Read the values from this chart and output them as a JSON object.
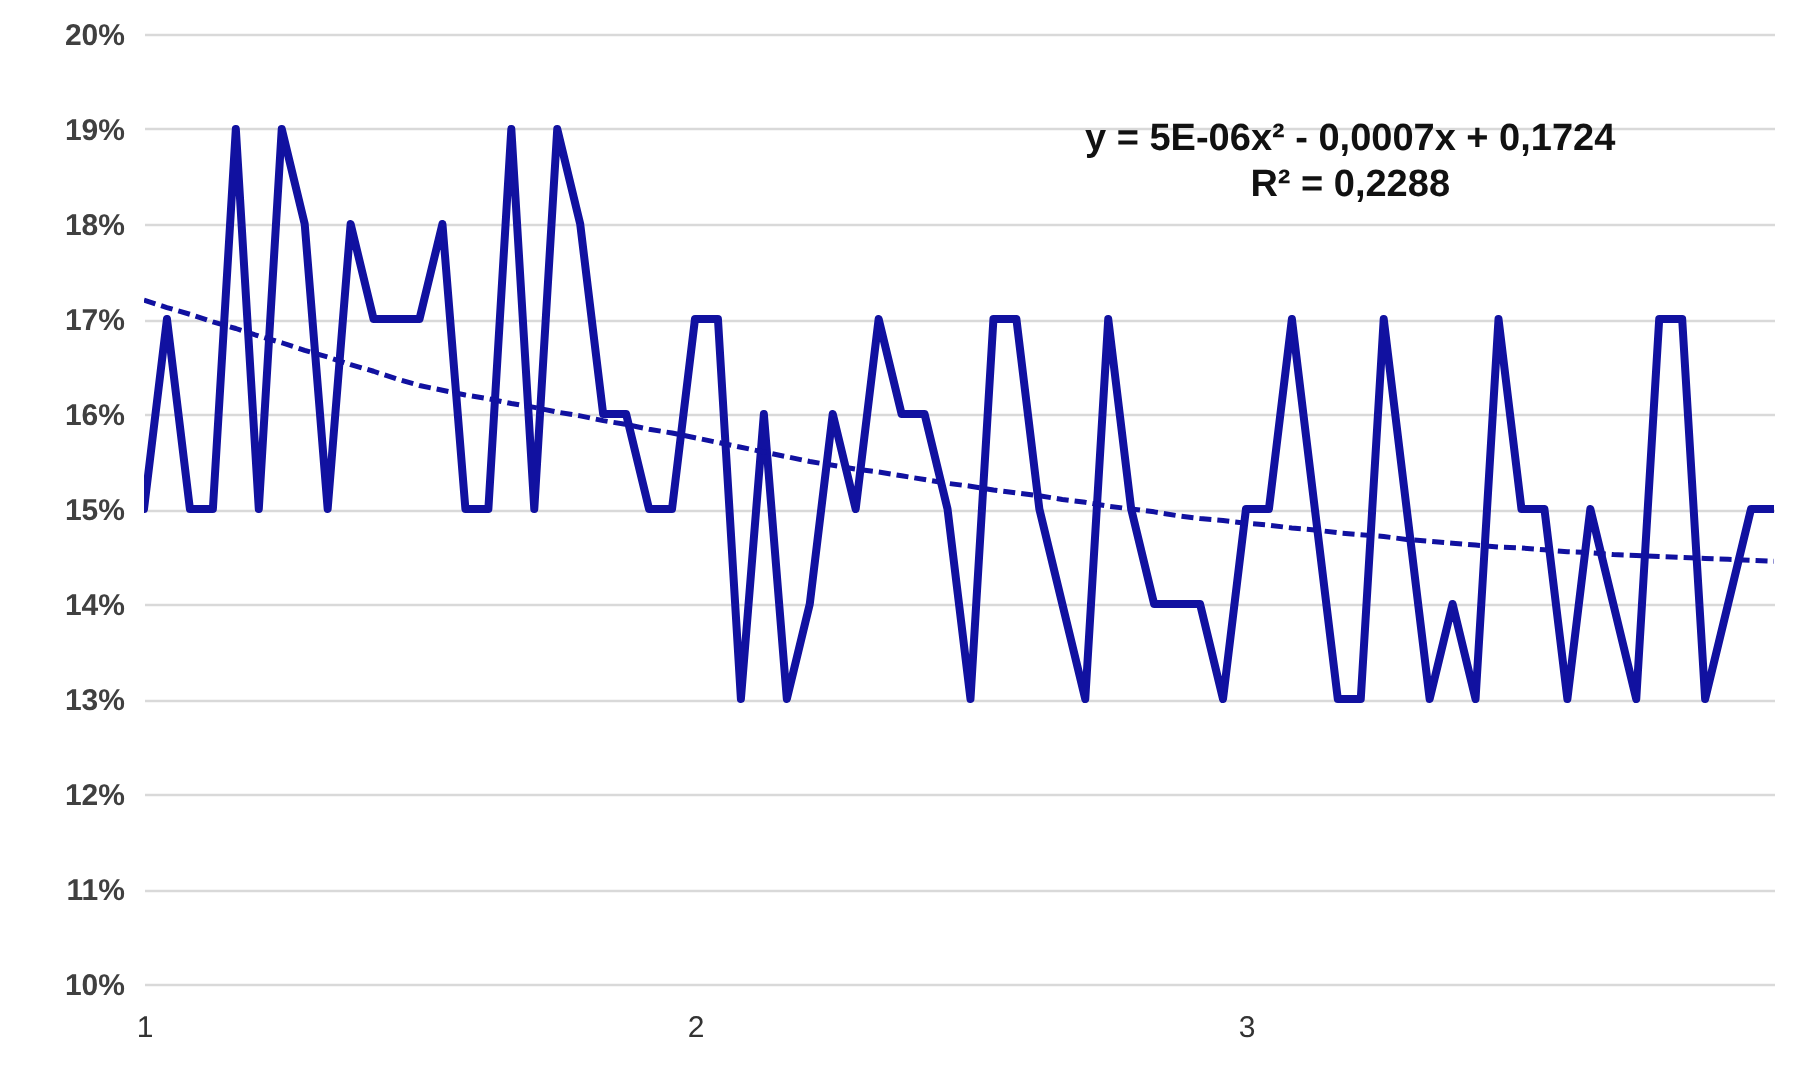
{
  "chart_data": {
    "type": "line",
    "categories": [
      "1",
      null,
      null,
      null,
      null,
      null,
      null,
      null,
      null,
      null,
      null,
      null,
      null,
      null,
      null,
      null,
      null,
      null,
      null,
      null,
      null,
      null,
      null,
      null,
      "2",
      null,
      null,
      null,
      null,
      null,
      null,
      null,
      null,
      null,
      null,
      null,
      null,
      null,
      null,
      null,
      null,
      null,
      null,
      null,
      null,
      null,
      null,
      null,
      "3",
      null,
      null,
      null,
      null,
      null,
      null,
      null,
      null,
      null,
      null,
      null,
      null,
      null,
      null,
      null,
      null,
      null,
      null,
      null,
      null,
      null,
      null,
      null
    ],
    "series": [
      {
        "color": "#1111a0",
        "line_style": "solid",
        "values": [
          15,
          17,
          15,
          15,
          19,
          15,
          19,
          18,
          15,
          18,
          17,
          17,
          17,
          18,
          15,
          15,
          19,
          15,
          19,
          18,
          16,
          16,
          15,
          15,
          17,
          17,
          13,
          16,
          13,
          14,
          16,
          15,
          17,
          16,
          16,
          15,
          13,
          17,
          17,
          15,
          14,
          13,
          17,
          15,
          14,
          14,
          14,
          13,
          15,
          15,
          17,
          15,
          13,
          13,
          17,
          15,
          13,
          14,
          13,
          17,
          15,
          15,
          13,
          15,
          14,
          13,
          17,
          17,
          13,
          14,
          15,
          15
        ]
      },
      {
        "type": "line",
        "color": "#1111a0",
        "line_style": "dashed",
        "values": [
          17.2,
          17.12,
          17.05,
          16.97,
          16.9,
          16.82,
          16.75,
          16.67,
          16.6,
          16.52,
          16.45,
          16.37,
          16.3,
          16.25,
          16.2,
          16.16,
          16.11,
          16.07,
          16.02,
          15.98,
          15.93,
          15.89,
          15.84,
          15.8,
          15.75,
          15.7,
          15.65,
          15.6,
          15.55,
          15.5,
          15.46,
          15.42,
          15.39,
          15.35,
          15.31,
          15.27,
          15.24,
          15.2,
          15.17,
          15.14,
          15.1,
          15.07,
          15.03,
          15,
          14.97,
          14.93,
          14.9,
          14.88,
          14.85,
          14.83,
          14.8,
          14.78,
          14.75,
          14.73,
          14.71,
          14.68,
          14.66,
          14.64,
          14.62,
          14.6,
          14.59,
          14.57,
          14.55,
          14.54,
          14.52,
          14.51,
          14.5,
          14.49,
          14.48,
          14.47,
          14.46,
          14.45
        ]
      }
    ],
    "ylim": [
      10,
      20
    ],
    "yticks": [
      {
        "value": 10,
        "label": "10%"
      },
      {
        "value": 11,
        "label": "11%"
      },
      {
        "value": 12,
        "label": "12%"
      },
      {
        "value": 13,
        "label": "13%"
      },
      {
        "value": 14,
        "label": "14%"
      },
      {
        "value": 15,
        "label": "15%"
      },
      {
        "value": 16,
        "label": "16%"
      },
      {
        "value": 17,
        "label": "17%"
      },
      {
        "value": 18,
        "label": "18%"
      },
      {
        "value": 19,
        "label": "19%"
      },
      {
        "value": 20,
        "label": "20%"
      }
    ],
    "grid": "y",
    "annotations": [
      "y = 5E-06x² - 0,0007x + 0,1724",
      "R² = 0,2288"
    ]
  }
}
